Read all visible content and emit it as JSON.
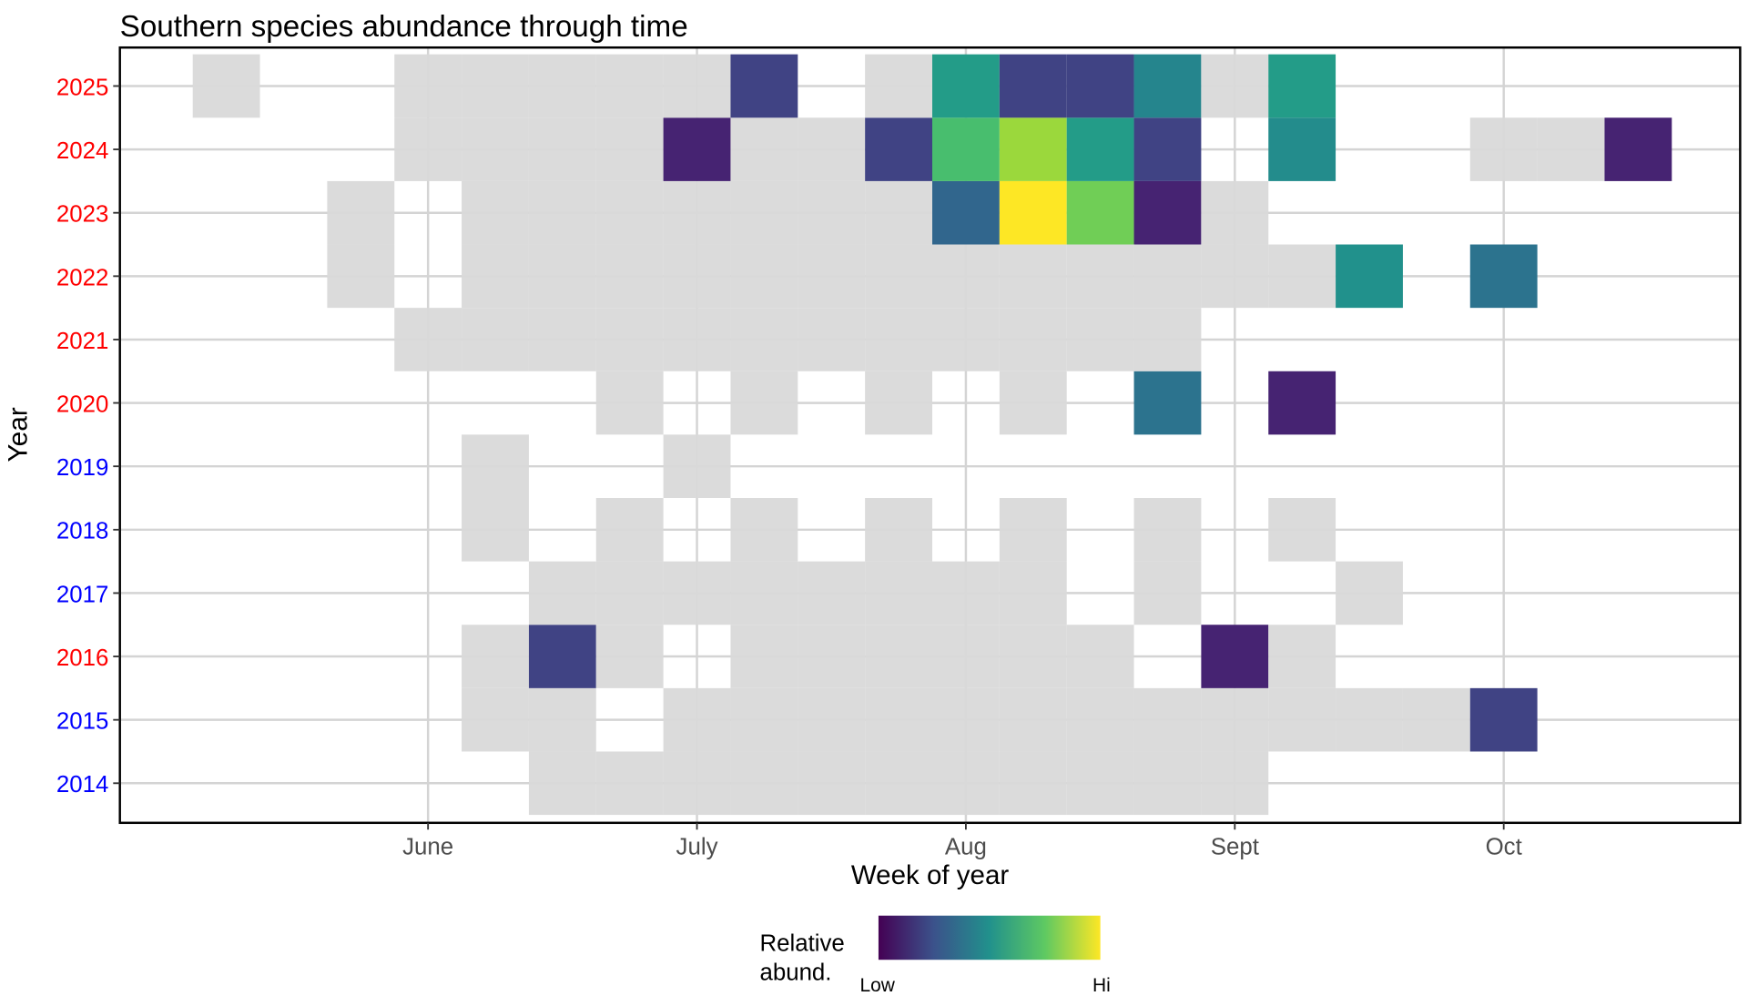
{
  "chart_data": {
    "type": "heatmap",
    "title": "Southern species abundance through time",
    "xlabel": "Week of year",
    "ylabel": "Year",
    "x_ticks": [
      {
        "label": "June",
        "week": 22
      },
      {
        "label": "July",
        "week": 26
      },
      {
        "label": "Aug",
        "week": 30
      },
      {
        "label": "Sept",
        "week": 34
      },
      {
        "label": "Oct",
        "week": 38
      }
    ],
    "xlim": [
      17.42,
      41.52
    ],
    "years": [
      {
        "year": 2025,
        "label": "2025",
        "color": "#ff0000"
      },
      {
        "year": 2024,
        "label": "2024",
        "color": "#ff0000"
      },
      {
        "year": 2023,
        "label": "2023",
        "color": "#ff0000"
      },
      {
        "year": 2022,
        "label": "2022",
        "color": "#ff0000"
      },
      {
        "year": 2021,
        "label": "2021",
        "color": "#ff0000"
      },
      {
        "year": 2020,
        "label": "2020",
        "color": "#ff0000"
      },
      {
        "year": 2019,
        "label": "2019",
        "color": "#0000ff"
      },
      {
        "year": 2018,
        "label": "2018",
        "color": "#0000ff"
      },
      {
        "year": 2017,
        "label": "2017",
        "color": "#0000ff"
      },
      {
        "year": 2016,
        "label": "2016",
        "color": "#ff0000"
      },
      {
        "year": 2015,
        "label": "2015",
        "color": "#0000ff"
      },
      {
        "year": 2014,
        "label": "2014",
        "color": "#0000ff"
      }
    ],
    "absent_color": "#d9d9d9",
    "note_values": "cells are [week, relative abundance 0-1]; null = sampled, species not recorded (grey)",
    "cells": {
      "2025": [
        [
          19,
          null
        ],
        [
          22,
          null
        ],
        [
          23,
          null
        ],
        [
          24,
          null
        ],
        [
          25,
          null
        ],
        [
          26,
          null
        ],
        [
          27,
          0.2
        ],
        [
          29,
          null
        ],
        [
          30,
          0.55
        ],
        [
          31,
          0.2
        ],
        [
          32,
          0.2
        ],
        [
          33,
          0.45
        ],
        [
          34,
          null
        ],
        [
          35,
          0.55
        ]
      ],
      "2024": [
        [
          22,
          null
        ],
        [
          23,
          null
        ],
        [
          24,
          null
        ],
        [
          25,
          null
        ],
        [
          26,
          0.1
        ],
        [
          27,
          null
        ],
        [
          28,
          null
        ],
        [
          29,
          0.2
        ],
        [
          30,
          0.7
        ],
        [
          31,
          0.85
        ],
        [
          32,
          0.55
        ],
        [
          33,
          0.2
        ],
        [
          35,
          0.48
        ],
        [
          38,
          null
        ],
        [
          39,
          null
        ],
        [
          40,
          0.1
        ]
      ],
      "2023": [
        [
          21,
          null
        ],
        [
          23,
          null
        ],
        [
          24,
          null
        ],
        [
          25,
          null
        ],
        [
          26,
          null
        ],
        [
          27,
          null
        ],
        [
          28,
          null
        ],
        [
          29,
          null
        ],
        [
          30,
          0.33
        ],
        [
          31,
          1.0
        ],
        [
          32,
          0.78
        ],
        [
          33,
          0.1
        ],
        [
          34,
          null
        ]
      ],
      "2022": [
        [
          21,
          null
        ],
        [
          23,
          null
        ],
        [
          24,
          null
        ],
        [
          25,
          null
        ],
        [
          26,
          null
        ],
        [
          27,
          null
        ],
        [
          28,
          null
        ],
        [
          29,
          null
        ],
        [
          30,
          null
        ],
        [
          31,
          null
        ],
        [
          32,
          null
        ],
        [
          33,
          null
        ],
        [
          34,
          null
        ],
        [
          35,
          null
        ],
        [
          36,
          0.5
        ],
        [
          38,
          0.38
        ]
      ],
      "2021": [
        [
          22,
          null
        ],
        [
          23,
          null
        ],
        [
          24,
          null
        ],
        [
          25,
          null
        ],
        [
          26,
          null
        ],
        [
          27,
          null
        ],
        [
          28,
          null
        ],
        [
          29,
          null
        ],
        [
          30,
          null
        ],
        [
          31,
          null
        ],
        [
          32,
          null
        ],
        [
          33,
          null
        ]
      ],
      "2020": [
        [
          25,
          null
        ],
        [
          27,
          null
        ],
        [
          29,
          null
        ],
        [
          31,
          null
        ],
        [
          33,
          0.38
        ],
        [
          35,
          0.1
        ]
      ],
      "2019": [
        [
          23,
          null
        ],
        [
          26,
          null
        ]
      ],
      "2018": [
        [
          23,
          null
        ],
        [
          25,
          null
        ],
        [
          27,
          null
        ],
        [
          29,
          null
        ],
        [
          31,
          null
        ],
        [
          33,
          null
        ],
        [
          35,
          null
        ]
      ],
      "2017": [
        [
          24,
          null
        ],
        [
          25,
          null
        ],
        [
          26,
          null
        ],
        [
          27,
          null
        ],
        [
          28,
          null
        ],
        [
          29,
          null
        ],
        [
          30,
          null
        ],
        [
          31,
          null
        ],
        [
          33,
          null
        ],
        [
          36,
          null
        ]
      ],
      "2016": [
        [
          23,
          null
        ],
        [
          24,
          0.2
        ],
        [
          25,
          null
        ],
        [
          27,
          null
        ],
        [
          28,
          null
        ],
        [
          29,
          null
        ],
        [
          30,
          null
        ],
        [
          31,
          null
        ],
        [
          32,
          null
        ],
        [
          34,
          0.1
        ],
        [
          35,
          null
        ]
      ],
      "2015": [
        [
          23,
          null
        ],
        [
          24,
          null
        ],
        [
          26,
          null
        ],
        [
          27,
          null
        ],
        [
          28,
          null
        ],
        [
          29,
          null
        ],
        [
          30,
          null
        ],
        [
          31,
          null
        ],
        [
          32,
          null
        ],
        [
          33,
          null
        ],
        [
          34,
          null
        ],
        [
          35,
          null
        ],
        [
          36,
          null
        ],
        [
          37,
          null
        ],
        [
          38,
          0.2
        ]
      ],
      "2014": [
        [
          24,
          null
        ],
        [
          25,
          null
        ],
        [
          26,
          null
        ],
        [
          27,
          null
        ],
        [
          28,
          null
        ],
        [
          29,
          null
        ],
        [
          30,
          null
        ],
        [
          31,
          null
        ],
        [
          32,
          null
        ],
        [
          33,
          null
        ],
        [
          34,
          null
        ]
      ]
    },
    "legend": {
      "title_line1": "Relative",
      "title_line2": "abund.",
      "low_label": "Low",
      "high_label": "Hi",
      "placement": "bottom",
      "colormap": "viridis"
    },
    "grid": true
  }
}
